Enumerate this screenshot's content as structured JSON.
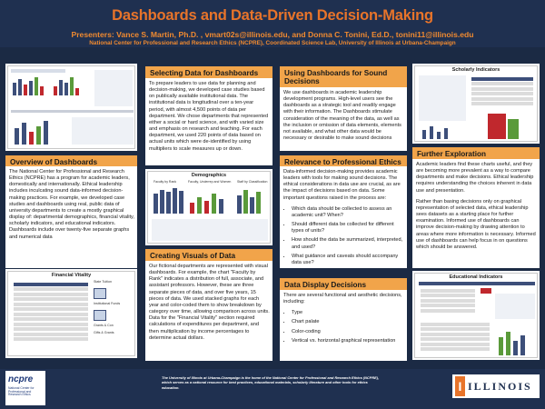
{
  "header": {
    "title": "Dashboards and Data-Driven Decision-Making",
    "authors": "Presenters: Vance S. Martin, Ph.D. , vmart02s@illinois.edu, and Donna C. Tonini, Ed.D., tonini11@illinois.edu",
    "institution": "National Center for Professional and Research Ethics (NCPRE), Coordinated Science Lab, University of Illinois at Urbana-Champaign"
  },
  "overview": {
    "title": "Overview of Dashboards",
    "text": "The National Center for Professional and Research Ethics (NCPRE) has a program for academic leaders, domestically and internationally. Ethical leadership includes inculcating sound data-informed decision-making practices. For example, we developed case studies and dashboards using real, public data of university departments to create a mostly graphical display of: departmental demographics, financial vitality, scholarly indicators, and educational indicators. Dashboards include over twenty-five separate graphs and numerical data"
  },
  "selecting": {
    "title": "Selecting Data for Dashboards",
    "text": "To prepare leaders to use data for planning and decision-making, we developed case studies based on publically available institutional data. The institutional data is longitudinal over a ten-year period, with almost 4,500 points of data per department. We chose departments that represented either a social or hard science, and with varied size and emphasis on research and teaching. For each department, we used 220 points of data based on actual units which were de-identified by using multipliers to scale measures up or down."
  },
  "creating": {
    "title": "Creating Visuals of Data",
    "text": "Our fictional departments are represented with visual dashboards. For example, the chart \"Faculty by Rank\" indicates a distribution of full, associate, and assistant professors. However, these are three separate pieces of data, and over five years, 15 pieces of data. We used stacked graphs for each year and color-coded them to show breakdown by category over time, allowing comparison across units. Data for the \"Financial Vitality\" section required calculations of expenditures per department, and then multiplication by income percentages to determine actual dollars."
  },
  "using": {
    "title": "Using Dashboards for Sound Decisions",
    "text": "We use dashboards in academic leadership development programs. High-level users see the dashboards as a strategic tool and readily engage with their information. The Dashboards stimulate consideration of the meaning of the data, as well as the inclusion or omission of data elements, elements not available, and what other data would be necessary or desirable to make sound decisions"
  },
  "relevance": {
    "title": "Relevance to Professional Ethics",
    "text": "Data-informed decision-making provides academic leaders with tools for making sound decisions. The ethical considerations in data use are crucial, as are the impact of decisions based on data. Some important questions raised in the process are:",
    "items": [
      "Which data should be collected to assess an academic unit? When?",
      "Should different data be collected for different types of units?",
      "How should the data be summarized, interpreted, and used?",
      "What guidance and caveats should accompany data use?"
    ]
  },
  "display": {
    "title": "Data Display Decisions",
    "text": "There are several functional and aesthetic decisions, including:",
    "items": [
      "Type",
      "Chart palate",
      "Color-coding",
      "Vertical vs. horizontal graphical representation"
    ]
  },
  "further": {
    "title": "Further Exploration",
    "p1": "Academic leaders find these charts useful, and they are becoming more prevalent as a way to compare departments and make decisions. Ethical leadership requires understanding the choices inherent in data use and presentation.",
    "p2": "Rather than basing decisions only on graphical representation of selected data, ethical leadership sees datasets as a starting place for further examination. Informed use of dashboards can improve decision-making by drawing attention to areas where more information is necessary. Informed use of dashboards can help focus in on questions which should be answered."
  },
  "figures": {
    "demographics": {
      "title": "Demographics",
      "labels": [
        "Faculty by Rank",
        "Faculty, Underrep and Women",
        "Staff by Classification"
      ]
    },
    "financial": {
      "title": "Financial Vitality",
      "labels": [
        "State Tuition",
        "Institutional Funds",
        "Grants & Con",
        "Gifts & Grants"
      ]
    },
    "scholarly": {
      "title": "Scholarly Indicators"
    },
    "educational": {
      "title": "Educational Indicators"
    }
  },
  "footer": {
    "logo": "ncpre",
    "logo_sub": "National Center for Professional and Research Ethics",
    "text": "The University of Illinois at Urbana-Champaign is the home of the National Center for Professional and Research Ethics (NCPRE), which serves as a national resource for best practices, educational materials, scholarly literature and other tools for ethics education.",
    "university": "ILLINOIS",
    "university_mark": "I"
  },
  "colors": {
    "background": "#1b2a44",
    "accent": "#e8742a",
    "section_title": "#f1a44a",
    "chart_blue": "#3d4f7a",
    "chart_red": "#c0282d",
    "chart_green": "#5a9a3a"
  }
}
